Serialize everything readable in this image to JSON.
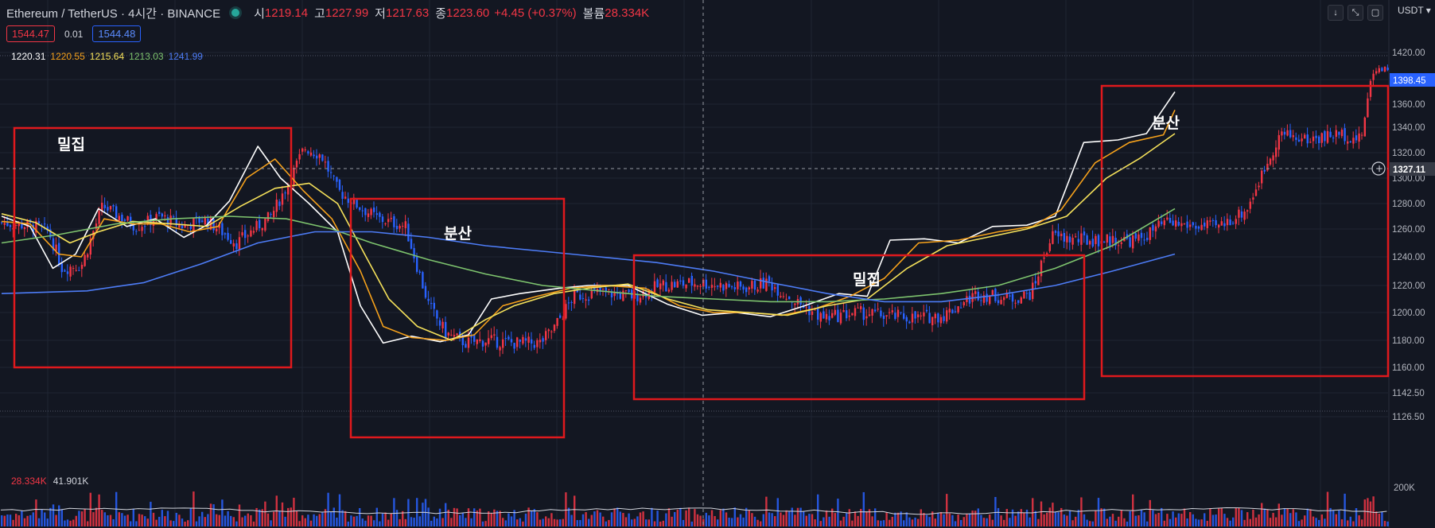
{
  "header": {
    "symbol": "Ethereum / TetherUS · 4시간 · BINANCE",
    "open_label": "시",
    "open": "1219.14",
    "high_label": "고",
    "high": "1227.99",
    "low_label": "저",
    "low": "1217.63",
    "close_label": "종",
    "close": "1223.60",
    "change": "+4.45 (+0.37%)",
    "volume_label": "볼륨",
    "volume": "28.334K"
  },
  "orders": {
    "sell": "1544.47",
    "spread": "0.01",
    "buy": "1544.48"
  },
  "ma_legend": [
    {
      "value": "1220.31",
      "color": "#ffffff"
    },
    {
      "value": "1220.55",
      "color": "#f7a21b"
    },
    {
      "value": "1215.64",
      "color": "#f5e15a"
    },
    {
      "value": "1213.03",
      "color": "#7ec46e"
    },
    {
      "value": "1241.99",
      "color": "#4d7cf6"
    }
  ],
  "volume_legend": {
    "current": "28.334K",
    "ma": "41.901K"
  },
  "currency": "USDT",
  "toolbar_icons": [
    "arrow-down-icon",
    "collapse-icon",
    "screenshot-icon"
  ],
  "colors": {
    "up": "#f23645",
    "down": "#2962ff",
    "box": "#e0191d",
    "background": "#131722"
  },
  "price_axis": {
    "ticks": [
      "1420.00",
      "1380.00",
      "1360.00",
      "1340.00",
      "1320.00",
      "1300.00",
      "1280.00",
      "1260.00",
      "1240.00",
      "1220.00",
      "1200.00",
      "1180.00",
      "1160.00",
      "1142.50",
      "1126.50"
    ],
    "last_price": "1398.45",
    "crosshair_price": "1327.11",
    "volume_tick": "200K",
    "bottom_tick": "0"
  },
  "annotations": [
    {
      "label": "밀집"
    },
    {
      "label": "분산"
    },
    {
      "label": "밀집"
    },
    {
      "label": "분산"
    }
  ],
  "chart_data": {
    "type": "candlestick",
    "ylim": [
      1120,
      1425
    ],
    "x_count": 220,
    "price_path": [
      [
        0,
        1265
      ],
      [
        10,
        1262
      ],
      [
        14,
        1258
      ],
      [
        18,
        1232
      ],
      [
        24,
        1235
      ],
      [
        30,
        1278
      ],
      [
        35,
        1270
      ],
      [
        40,
        1262
      ],
      [
        47,
        1270
      ],
      [
        54,
        1262
      ],
      [
        60,
        1268
      ],
      [
        70,
        1250
      ],
      [
        80,
        1270
      ],
      [
        85,
        1295
      ],
      [
        90,
        1324
      ],
      [
        95,
        1318
      ],
      [
        100,
        1290
      ],
      [
        106,
        1278
      ],
      [
        112,
        1268
      ],
      [
        120,
        1262
      ],
      [
        127,
        1205
      ],
      [
        132,
        1185
      ],
      [
        138,
        1178
      ],
      [
        144,
        1180
      ],
      [
        152,
        1178
      ],
      [
        160,
        1178
      ],
      [
        164,
        1188
      ],
      [
        170,
        1212
      ],
      [
        178,
        1215
      ],
      [
        188,
        1212
      ],
      [
        196,
        1220
      ],
      [
        208,
        1222
      ],
      [
        220,
        1218
      ],
      [
        228,
        1222
      ],
      [
        236,
        1208
      ],
      [
        244,
        1196
      ],
      [
        254,
        1200
      ],
      [
        262,
        1198
      ],
      [
        272,
        1196
      ],
      [
        280,
        1198
      ],
      [
        290,
        1214
      ],
      [
        300,
        1210
      ],
      [
        306,
        1214
      ],
      [
        312,
        1255
      ],
      [
        320,
        1252
      ],
      [
        332,
        1252
      ],
      [
        338,
        1252
      ],
      [
        346,
        1265
      ],
      [
        356,
        1262
      ],
      [
        362,
        1262
      ],
      [
        370,
        1275
      ],
      [
        380,
        1335
      ],
      [
        388,
        1330
      ],
      [
        398,
        1335
      ],
      [
        404,
        1330
      ],
      [
        408,
        1395
      ],
      [
        412,
        1398
      ]
    ],
    "ma_series": [
      {
        "color": "#ffffff",
        "path": [
          [
            0,
            1270
          ],
          [
            10,
            1262
          ],
          [
            18,
            1232
          ],
          [
            26,
            1242
          ],
          [
            34,
            1276
          ],
          [
            44,
            1262
          ],
          [
            54,
            1268
          ],
          [
            64,
            1254
          ],
          [
            72,
            1263
          ],
          [
            80,
            1282
          ],
          [
            90,
            1325
          ],
          [
            98,
            1300
          ],
          [
            108,
            1280
          ],
          [
            118,
            1258
          ],
          [
            126,
            1205
          ],
          [
            134,
            1178
          ],
          [
            144,
            1183
          ],
          [
            154,
            1179
          ],
          [
            164,
            1184
          ],
          [
            172,
            1210
          ],
          [
            182,
            1214
          ],
          [
            196,
            1218
          ],
          [
            206,
            1220
          ],
          [
            220,
            1220
          ],
          [
            234,
            1206
          ],
          [
            246,
            1198
          ],
          [
            258,
            1200
          ],
          [
            270,
            1197
          ],
          [
            282,
            1205
          ],
          [
            294,
            1214
          ],
          [
            304,
            1212
          ],
          [
            312,
            1252
          ],
          [
            324,
            1253
          ],
          [
            336,
            1250
          ],
          [
            348,
            1262
          ],
          [
            360,
            1263
          ],
          [
            370,
            1270
          ],
          [
            380,
            1328
          ],
          [
            392,
            1330
          ],
          [
            402,
            1335
          ],
          [
            412,
            1370
          ]
        ]
      },
      {
        "color": "#f7a21b",
        "path": [
          [
            0,
            1266
          ],
          [
            10,
            1264
          ],
          [
            20,
            1242
          ],
          [
            28,
            1240
          ],
          [
            36,
            1268
          ],
          [
            46,
            1264
          ],
          [
            56,
            1264
          ],
          [
            66,
            1258
          ],
          [
            76,
            1262
          ],
          [
            86,
            1300
          ],
          [
            96,
            1315
          ],
          [
            106,
            1290
          ],
          [
            116,
            1268
          ],
          [
            126,
            1230
          ],
          [
            134,
            1190
          ],
          [
            144,
            1182
          ],
          [
            156,
            1180
          ],
          [
            166,
            1184
          ],
          [
            176,
            1205
          ],
          [
            188,
            1212
          ],
          [
            200,
            1218
          ],
          [
            212,
            1220
          ],
          [
            226,
            1218
          ],
          [
            238,
            1205
          ],
          [
            250,
            1200
          ],
          [
            262,
            1200
          ],
          [
            274,
            1198
          ],
          [
            286,
            1203
          ],
          [
            298,
            1212
          ],
          [
            310,
            1225
          ],
          [
            322,
            1250
          ],
          [
            336,
            1252
          ],
          [
            350,
            1258
          ],
          [
            362,
            1262
          ],
          [
            372,
            1275
          ],
          [
            384,
            1312
          ],
          [
            396,
            1328
          ],
          [
            408,
            1334
          ],
          [
            412,
            1355
          ]
        ]
      },
      {
        "color": "#f5e15a",
        "path": [
          [
            0,
            1272
          ],
          [
            12,
            1265
          ],
          [
            24,
            1250
          ],
          [
            34,
            1258
          ],
          [
            46,
            1266
          ],
          [
            60,
            1264
          ],
          [
            72,
            1262
          ],
          [
            84,
            1278
          ],
          [
            96,
            1292
          ],
          [
            108,
            1296
          ],
          [
            118,
            1280
          ],
          [
            128,
            1240
          ],
          [
            136,
            1210
          ],
          [
            146,
            1190
          ],
          [
            158,
            1180
          ],
          [
            170,
            1195
          ],
          [
            180,
            1205
          ],
          [
            194,
            1214
          ],
          [
            206,
            1218
          ],
          [
            220,
            1221
          ],
          [
            234,
            1210
          ],
          [
            248,
            1202
          ],
          [
            262,
            1200
          ],
          [
            276,
            1198
          ],
          [
            290,
            1205
          ],
          [
            304,
            1210
          ],
          [
            318,
            1232
          ],
          [
            332,
            1248
          ],
          [
            346,
            1254
          ],
          [
            360,
            1260
          ],
          [
            374,
            1270
          ],
          [
            388,
            1300
          ],
          [
            400,
            1316
          ],
          [
            412,
            1335
          ]
        ]
      },
      {
        "color": "#7ec46e",
        "path": [
          [
            0,
            1250
          ],
          [
            20,
            1256
          ],
          [
            40,
            1264
          ],
          [
            60,
            1268
          ],
          [
            80,
            1270
          ],
          [
            100,
            1268
          ],
          [
            116,
            1260
          ],
          [
            130,
            1250
          ],
          [
            150,
            1238
          ],
          [
            170,
            1228
          ],
          [
            190,
            1220
          ],
          [
            210,
            1216
          ],
          [
            230,
            1212
          ],
          [
            250,
            1210
          ],
          [
            270,
            1208
          ],
          [
            290,
            1208
          ],
          [
            310,
            1210
          ],
          [
            330,
            1214
          ],
          [
            350,
            1220
          ],
          [
            370,
            1232
          ],
          [
            390,
            1248
          ],
          [
            412,
            1276
          ]
        ]
      },
      {
        "color": "#4d7cf6",
        "path": [
          [
            0,
            1214
          ],
          [
            30,
            1216
          ],
          [
            50,
            1222
          ],
          [
            70,
            1235
          ],
          [
            90,
            1250
          ],
          [
            110,
            1258
          ],
          [
            130,
            1258
          ],
          [
            150,
            1254
          ],
          [
            170,
            1248
          ],
          [
            190,
            1244
          ],
          [
            210,
            1240
          ],
          [
            230,
            1236
          ],
          [
            250,
            1230
          ],
          [
            270,
            1222
          ],
          [
            290,
            1214
          ],
          [
            310,
            1208
          ],
          [
            330,
            1208
          ],
          [
            350,
            1213
          ],
          [
            370,
            1220
          ],
          [
            390,
            1230
          ],
          [
            412,
            1242
          ]
        ]
      }
    ]
  }
}
